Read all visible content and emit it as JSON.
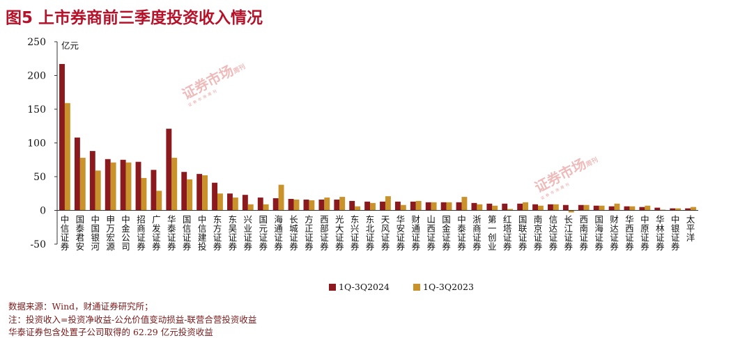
{
  "figure": {
    "title": "图5  上市券商前三季度投资收入情况",
    "unit": "亿元",
    "source": "数据来源：Wind，财通证券研究所；",
    "note1": "注：投资收入=投资净收益-公允价值变动损益-联营合营投资收益",
    "note2": "华泰证券包含处置子公司取得的 62.29 亿元投资收益"
  },
  "watermark": {
    "main": "证券市场",
    "side": "周刊",
    "sub": "证券市场周刊"
  },
  "colors": {
    "series1": "#8b1a1f",
    "series2": "#c9922a",
    "title": "#b5122a"
  },
  "chart_data": {
    "type": "bar",
    "ylabel": "亿元",
    "ylim": [
      -50,
      250
    ],
    "yticks": [
      -50,
      0,
      50,
      100,
      150,
      200,
      250
    ],
    "grid": false,
    "legend": "bottom-center",
    "categories": [
      "中信证券",
      "国泰君安",
      "中国银河",
      "申万宏源",
      "中金公司",
      "招商证券",
      "广发证券",
      "华泰证券",
      "国信证券",
      "中信建投",
      "东方证券",
      "东吴证券",
      "兴业证券",
      "国元证券",
      "海通证券",
      "长城证券",
      "方正证券",
      "西部证券",
      "光大证券",
      "东兴证券",
      "东北证券",
      "天风证券",
      "华安证券",
      "财通证券",
      "山西证券",
      "国金证券",
      "中泰证券",
      "浙商证券",
      "第一创业",
      "红塔证券",
      "国联证券",
      "南京证券",
      "信达证券",
      "长江证券",
      "西南证券",
      "国海证券",
      "财达证券",
      "华西证券",
      "中原证券",
      "华林证券",
      "中银证券",
      "太平洋"
    ],
    "series": [
      {
        "name": "1Q-3Q2024",
        "values": [
          217,
          108,
          88,
          76,
          75,
          72,
          60,
          121,
          57,
          54,
          41,
          25,
          23,
          19,
          18,
          17,
          16,
          16,
          16,
          14,
          13,
          13,
          13,
          13,
          12,
          12,
          12,
          11,
          10,
          10,
          10,
          9,
          9,
          8,
          8,
          7,
          6,
          6,
          5,
          4,
          3,
          3
        ]
      },
      {
        "name": "1Q-3Q2023",
        "values": [
          159,
          78,
          59,
          71,
          71,
          48,
          29,
          78,
          46,
          52,
          25,
          19,
          9,
          9,
          38,
          16,
          15,
          19,
          20,
          6,
          11,
          21,
          8,
          14,
          12,
          12,
          20,
          9,
          7,
          2,
          12,
          7,
          9,
          -3,
          8,
          7,
          10,
          6,
          7,
          1,
          3,
          5
        ]
      }
    ]
  }
}
